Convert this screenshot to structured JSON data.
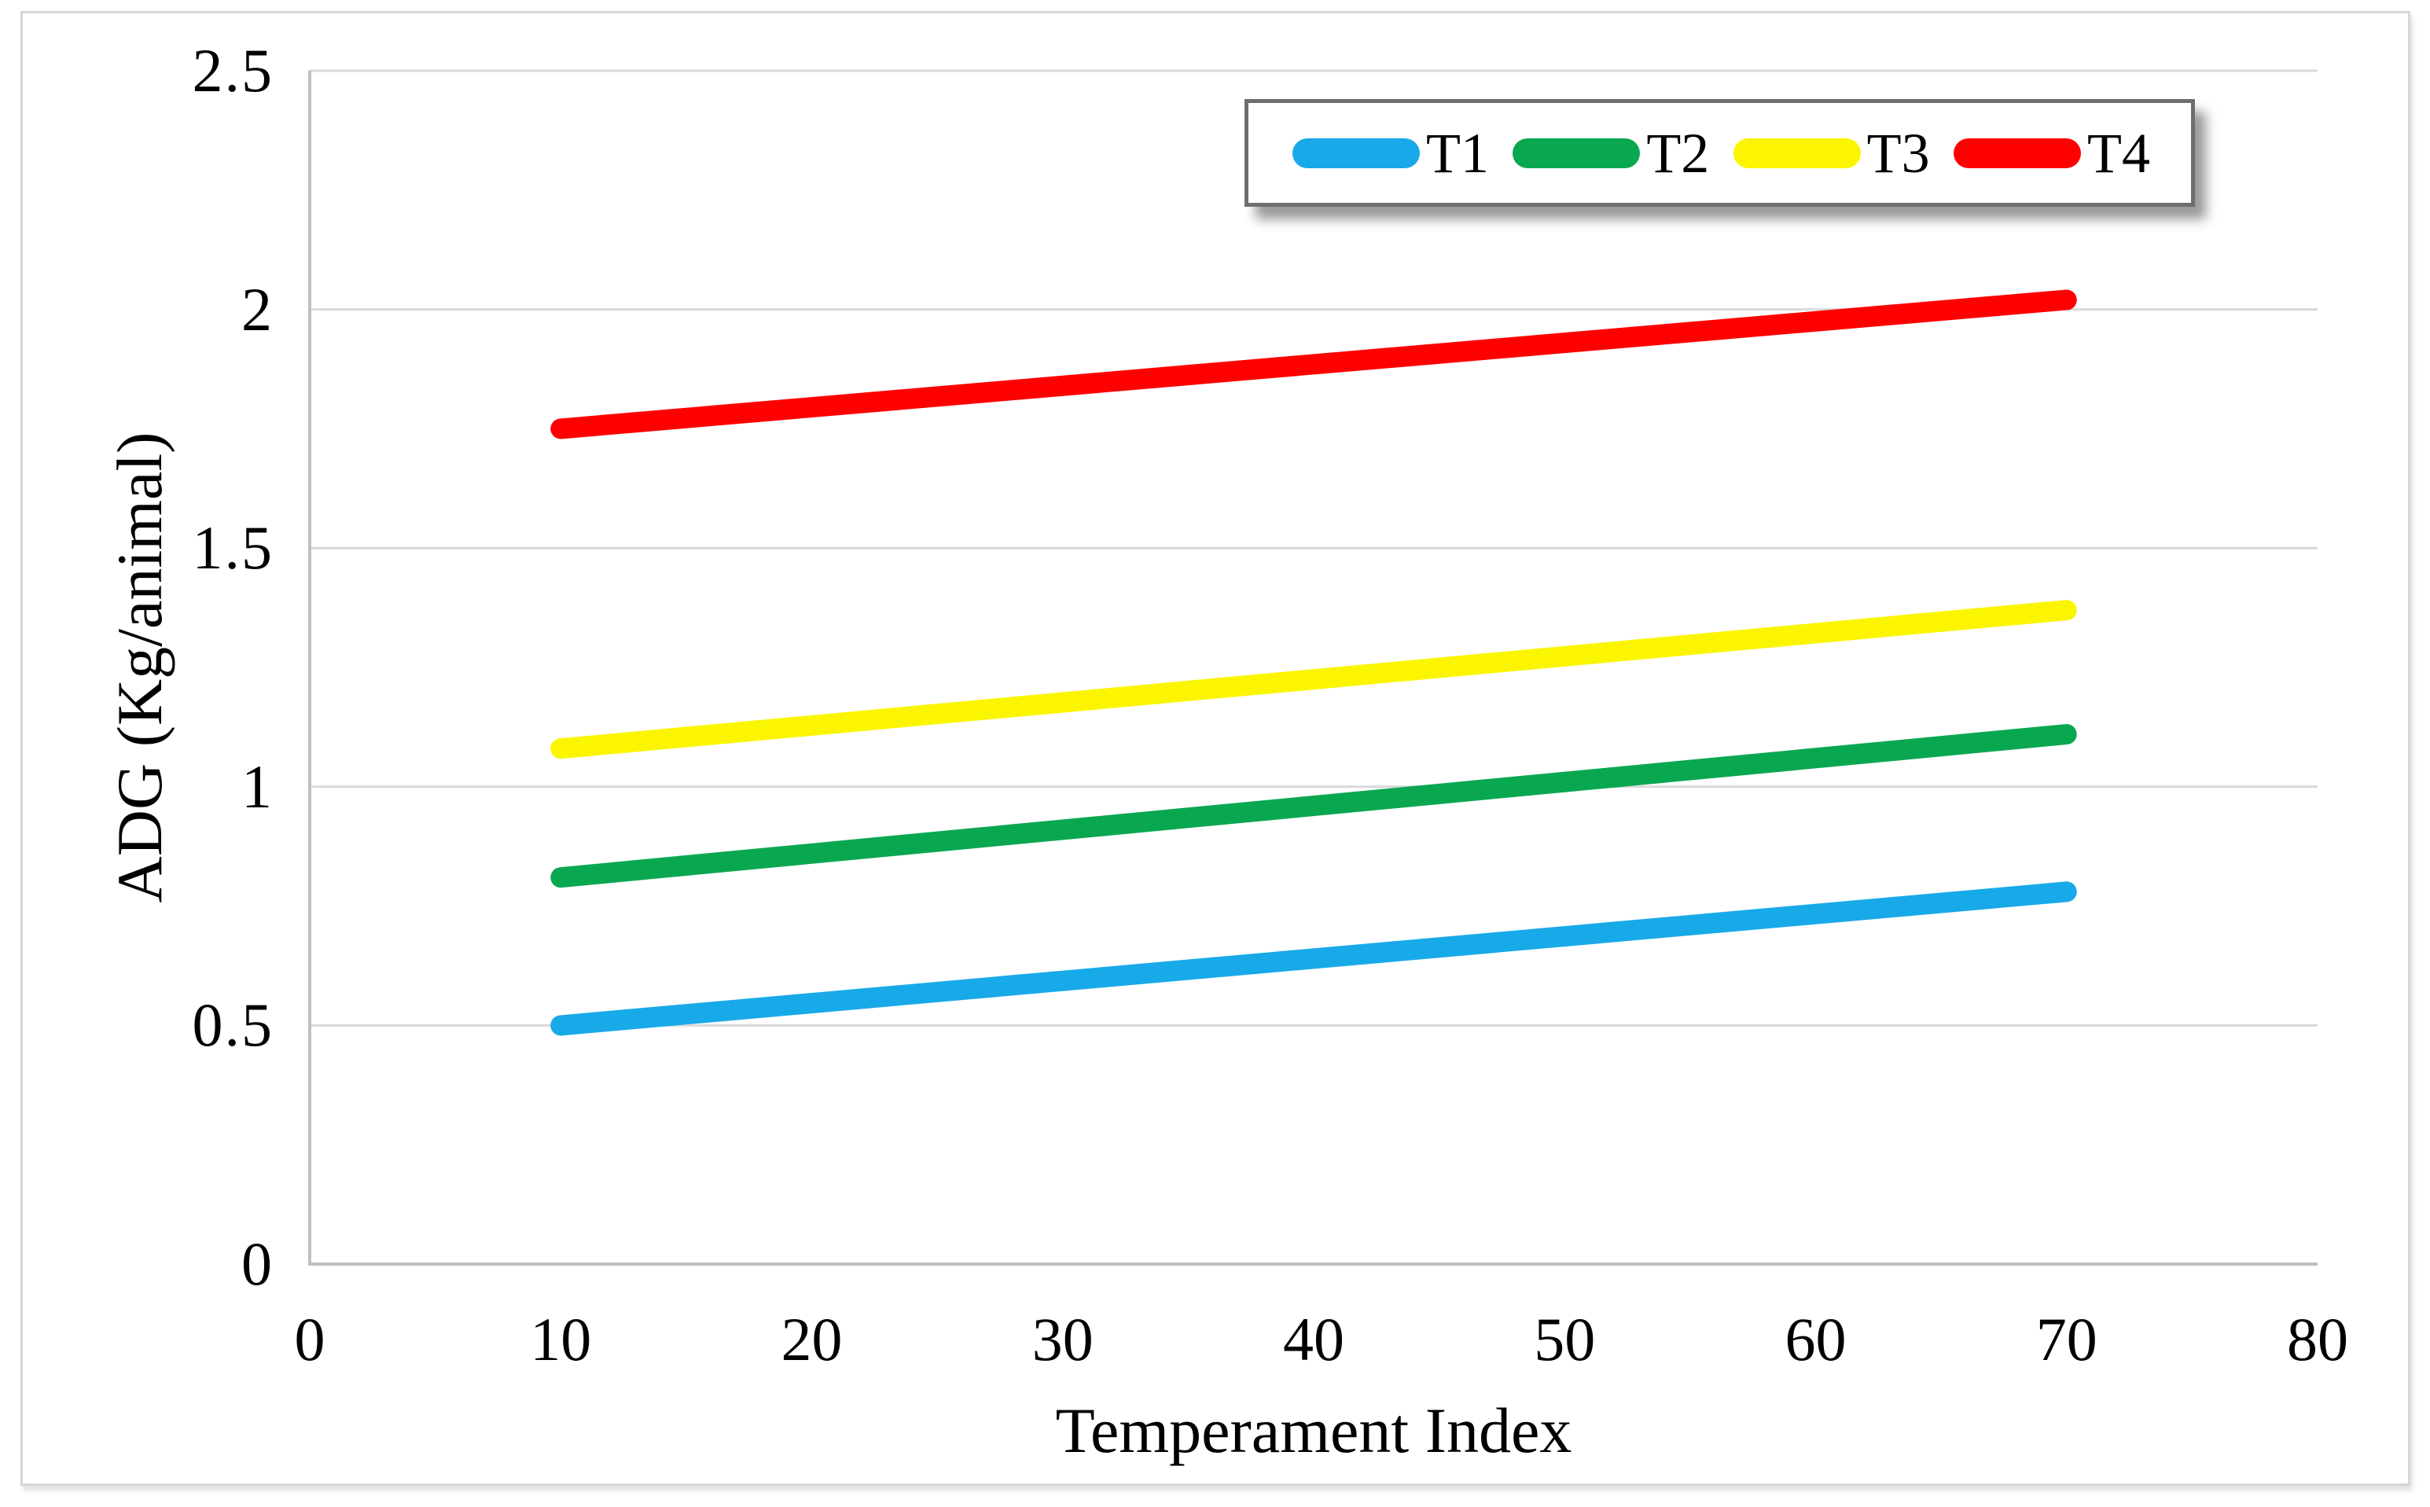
{
  "figure": {
    "background": "#ffffff",
    "frame_color": "#d6d6d6"
  },
  "chart_data": {
    "type": "line",
    "title": "",
    "xlabel": "Temperament Index",
    "ylabel": "ADG (Kg/animal)",
    "xlim": [
      0,
      80
    ],
    "ylim": [
      0,
      2.5
    ],
    "x_ticks": [
      0,
      10,
      20,
      30,
      40,
      50,
      60,
      70,
      80
    ],
    "y_ticks": [
      0,
      0.5,
      1,
      1.5,
      2,
      2.5
    ],
    "grid": "horizontal",
    "gridline_color": "#d9d9d9",
    "axis_line_color": "#bfbfbf",
    "legend_position": "top-right-inside",
    "series": [
      {
        "name": "T1",
        "color": "#18a9e9",
        "x": [
          10,
          70
        ],
        "y": [
          0.5,
          0.78
        ]
      },
      {
        "name": "T2",
        "color": "#0aa751",
        "x": [
          10,
          70
        ],
        "y": [
          0.81,
          1.11
        ]
      },
      {
        "name": "T3",
        "color": "#fcf500",
        "x": [
          10,
          70
        ],
        "y": [
          1.08,
          1.37
        ]
      },
      {
        "name": "T4",
        "color": "#fe0000",
        "x": [
          10,
          70
        ],
        "y": [
          1.75,
          2.02
        ]
      }
    ]
  }
}
